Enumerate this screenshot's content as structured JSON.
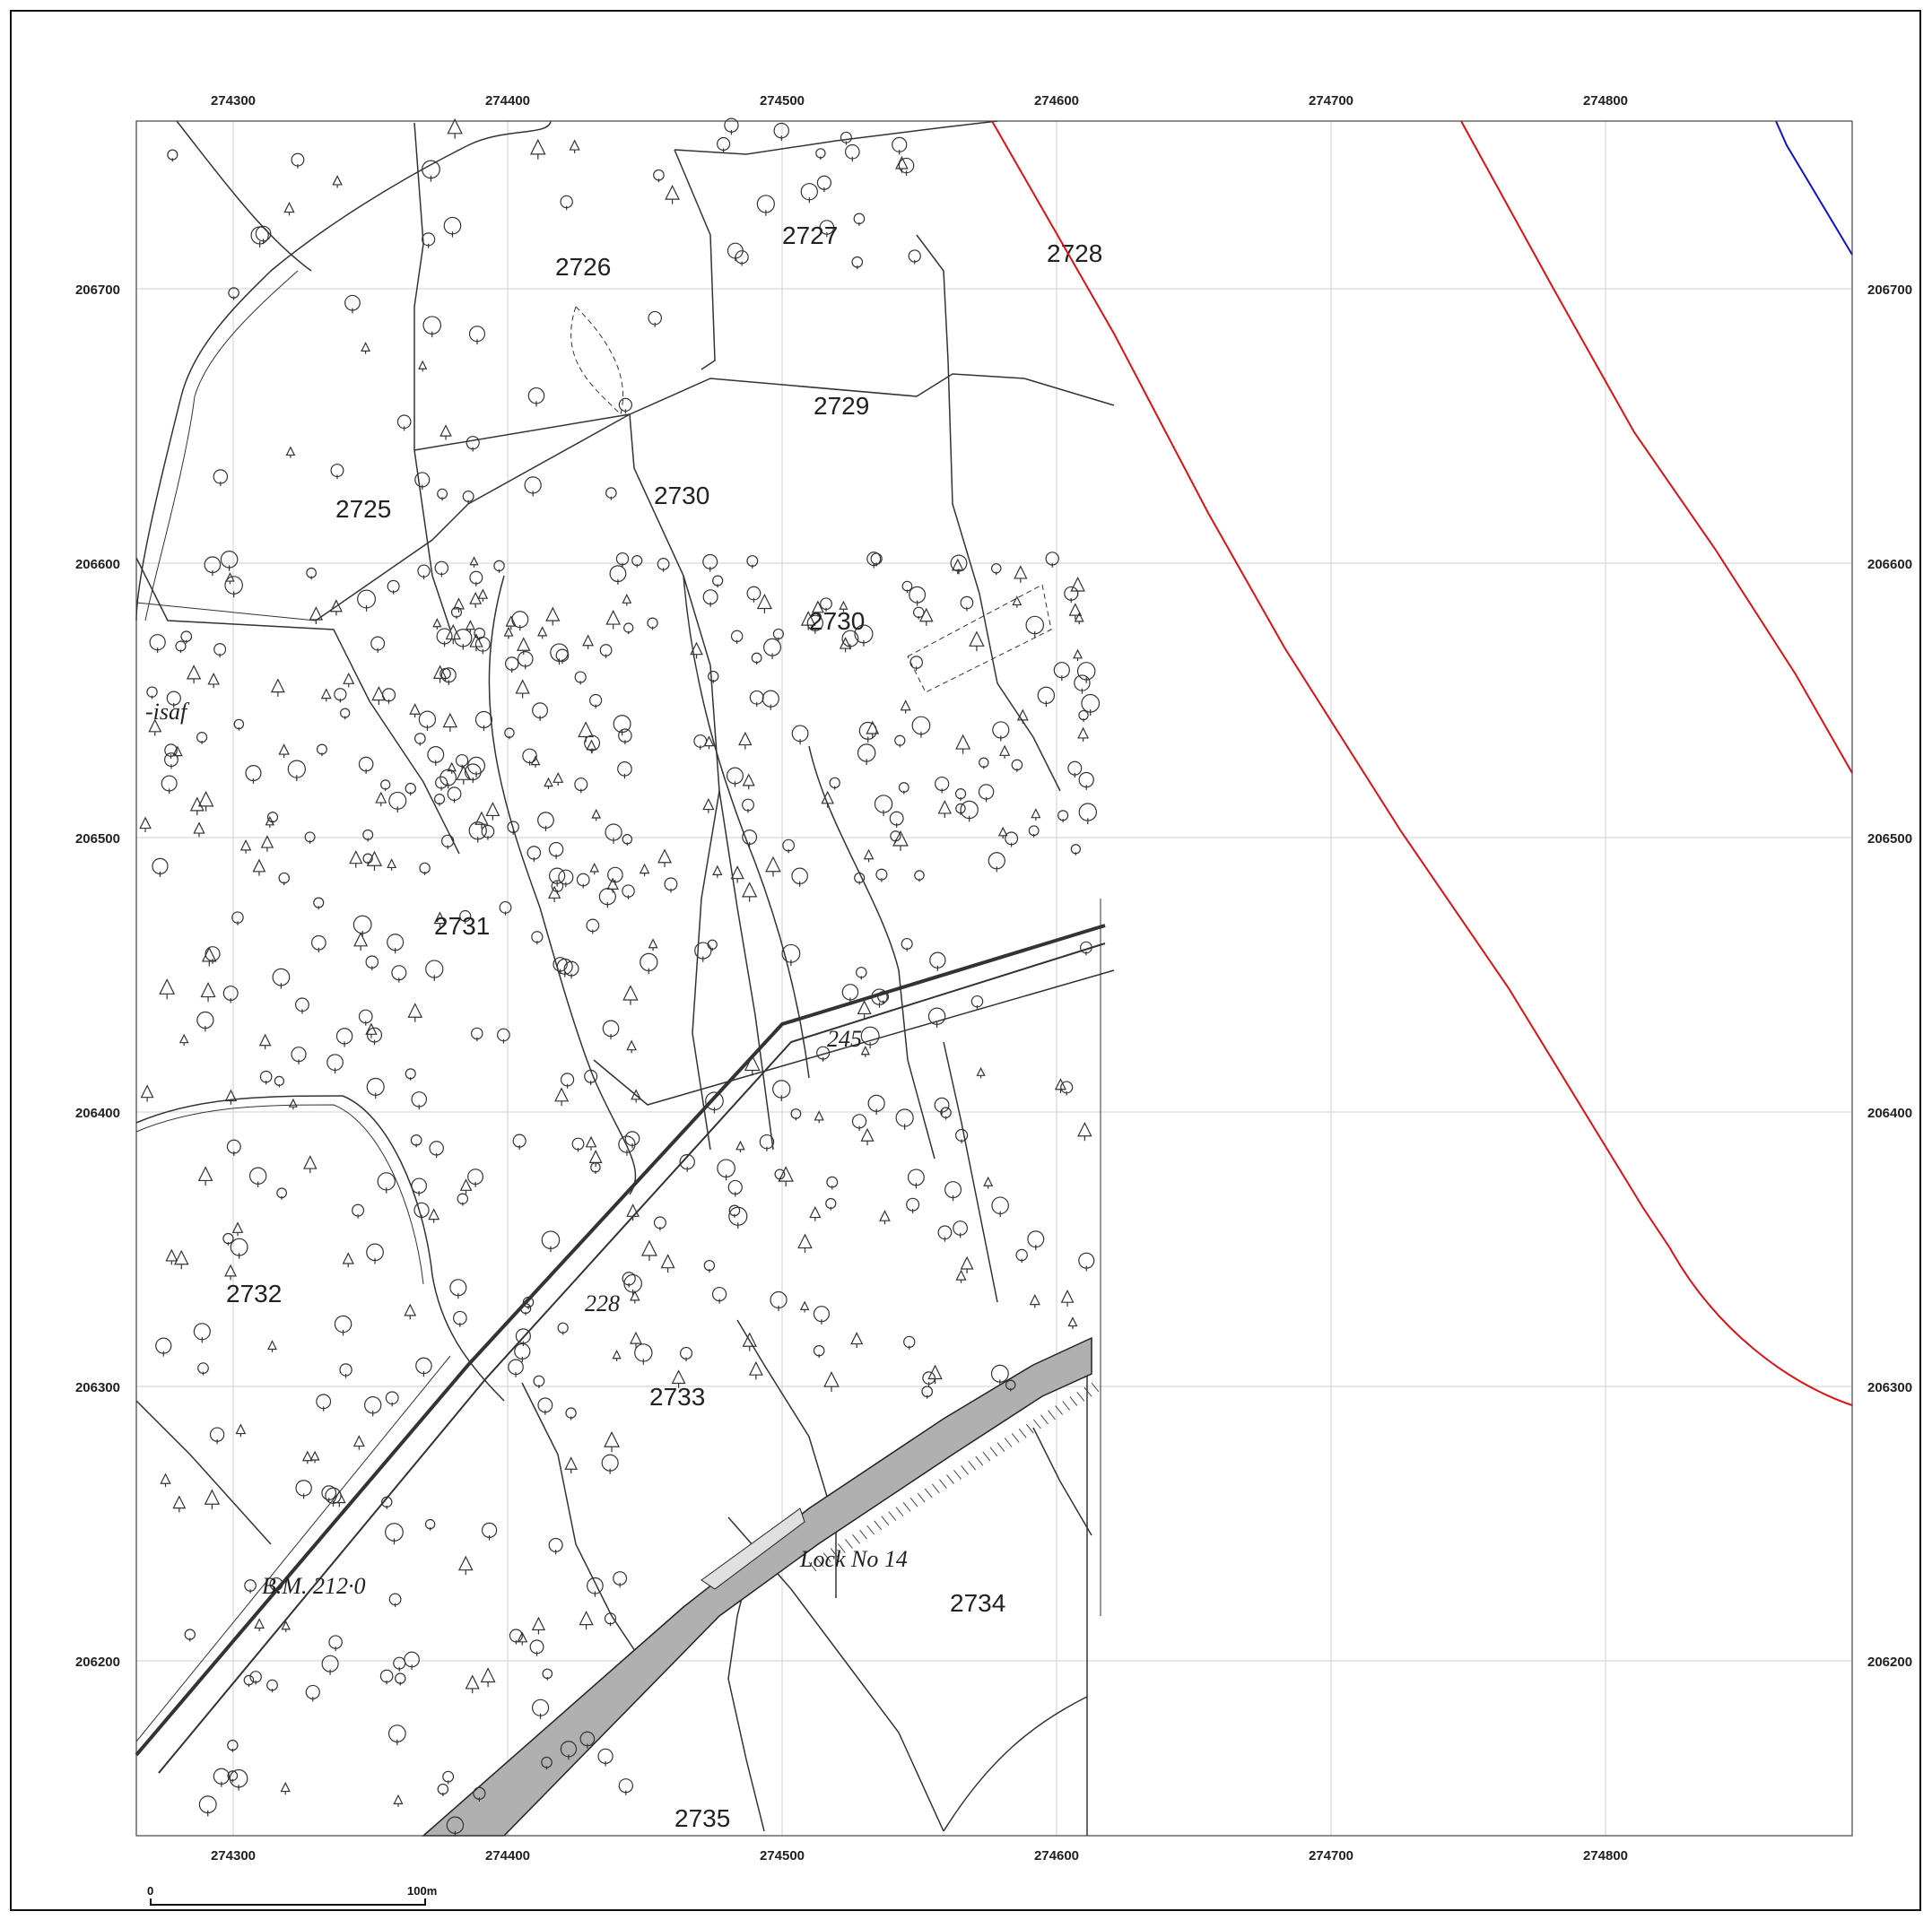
{
  "axes": {
    "x_ticks": [
      "274300",
      "274400",
      "274500",
      "274600",
      "274700",
      "274800"
    ],
    "y_ticks": [
      "206700",
      "206600",
      "206500",
      "206400",
      "206300",
      "206200"
    ]
  },
  "parcels": [
    "2725",
    "2726",
    "2727",
    "2728",
    "2729",
    "2730",
    "2730",
    "2731",
    "2732",
    "2733",
    "2734",
    "2735"
  ],
  "annotations": {
    "lock": "Lock No 14",
    "benchmark": "B.M. 212·0",
    "spot_height_1": "245",
    "spot_height_2": "228",
    "place_fragment": "-isaf"
  },
  "scale_bar": {
    "start_label": "0",
    "end_label": "100m"
  },
  "colors": {
    "boundary_red": "#dd1111",
    "boundary_blue": "#1111cc",
    "canal_fill": "#b0b0b0",
    "grid": "#cccccc"
  }
}
